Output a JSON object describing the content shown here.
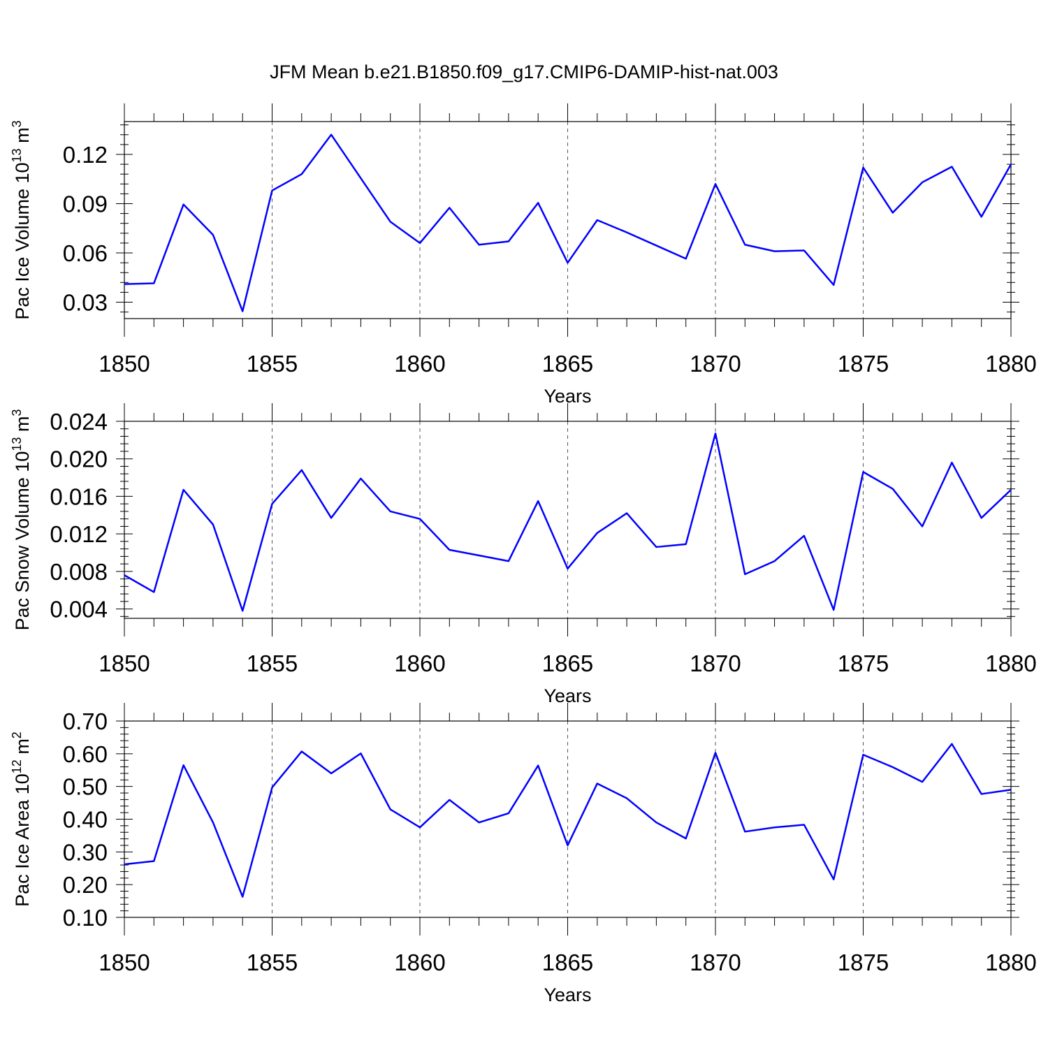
{
  "title": "JFM Mean b.e21.B1850.f09_g17.CMIP6-DAMIP-hist-nat.003",
  "colors": {
    "series": "#0000ff",
    "axis": "#000000",
    "grid": "#555555"
  },
  "chart_data": [
    {
      "type": "line",
      "ylabel": {
        "base": "Pac Ice Volume 10",
        "exp": "13",
        "unit": " m",
        "unit_exp": "3"
      },
      "xlabel": "Years",
      "xlim": [
        1850,
        1880
      ],
      "ylim": [
        0.02,
        0.14
      ],
      "xticks": [
        "1850",
        "1855",
        "1860",
        "1865",
        "1870",
        "1875",
        "1880"
      ],
      "yticks": [
        "0.03",
        "0.06",
        "0.09",
        "0.12"
      ],
      "grid": "vertical dashed at major x ticks",
      "x": [
        1850,
        1851,
        1852,
        1853,
        1854,
        1855,
        1856,
        1857,
        1858,
        1859,
        1860,
        1861,
        1862,
        1863,
        1864,
        1865,
        1866,
        1867,
        1868,
        1869,
        1870,
        1871,
        1872,
        1873,
        1874,
        1875,
        1876,
        1877,
        1878,
        1879,
        1880
      ],
      "series": [
        {
          "values": [
            0.041,
            0.0415,
            0.0895,
            0.071,
            0.0245,
            0.098,
            0.108,
            0.132,
            0.1055,
            0.079,
            0.066,
            0.0875,
            0.065,
            0.067,
            0.0905,
            0.054,
            0.08,
            0.0725,
            0.0645,
            0.0565,
            0.102,
            0.065,
            0.061,
            0.0615,
            0.0405,
            0.112,
            0.0845,
            0.103,
            0.1125,
            0.082,
            0.114
          ]
        }
      ]
    },
    {
      "type": "line",
      "ylabel": {
        "base": "Pac Snow Volume 10",
        "exp": "13",
        "unit": " m",
        "unit_exp": "3"
      },
      "xlabel": "Years",
      "xlim": [
        1850,
        1880
      ],
      "ylim": [
        0.003,
        0.024
      ],
      "xticks": [
        "1850",
        "1855",
        "1860",
        "1865",
        "1870",
        "1875",
        "1880"
      ],
      "yticks": [
        "0.004",
        "0.008",
        "0.012",
        "0.016",
        "0.020",
        "0.024"
      ],
      "grid": "vertical dashed at major x ticks",
      "x": [
        1850,
        1851,
        1852,
        1853,
        1854,
        1855,
        1856,
        1857,
        1858,
        1859,
        1860,
        1861,
        1862,
        1863,
        1864,
        1865,
        1866,
        1867,
        1868,
        1869,
        1870,
        1871,
        1872,
        1873,
        1874,
        1875,
        1876,
        1877,
        1878,
        1879,
        1880
      ],
      "series": [
        {
          "values": [
            0.0076,
            0.0058,
            0.0167,
            0.013,
            0.0038,
            0.0152,
            0.0188,
            0.0137,
            0.0179,
            0.0144,
            0.0136,
            0.0103,
            0.0097,
            0.0091,
            0.0155,
            0.0083,
            0.0121,
            0.0142,
            0.0106,
            0.0109,
            0.0227,
            0.0077,
            0.0091,
            0.0118,
            0.0039,
            0.0186,
            0.0168,
            0.0128,
            0.0196,
            0.0137,
            0.0167
          ]
        }
      ]
    },
    {
      "type": "line",
      "ylabel": {
        "base": "Pac Ice Area 10",
        "exp": "12",
        "unit": " m",
        "unit_exp": "2"
      },
      "xlabel": "Years",
      "xlim": [
        1850,
        1880
      ],
      "ylim": [
        0.1,
        0.7
      ],
      "xticks": [
        "1850",
        "1855",
        "1860",
        "1865",
        "1870",
        "1875",
        "1880"
      ],
      "yticks": [
        "0.10",
        "0.20",
        "0.30",
        "0.40",
        "0.50",
        "0.60",
        "0.70"
      ],
      "grid": "vertical dashed at major x ticks",
      "x": [
        1850,
        1851,
        1852,
        1853,
        1854,
        1855,
        1856,
        1857,
        1858,
        1859,
        1860,
        1861,
        1862,
        1863,
        1864,
        1865,
        1866,
        1867,
        1868,
        1869,
        1870,
        1871,
        1872,
        1873,
        1874,
        1875,
        1876,
        1877,
        1878,
        1879,
        1880
      ],
      "series": [
        {
          "values": [
            0.262,
            0.272,
            0.565,
            0.39,
            0.163,
            0.497,
            0.607,
            0.54,
            0.601,
            0.43,
            0.375,
            0.459,
            0.39,
            0.418,
            0.564,
            0.32,
            0.509,
            0.464,
            0.39,
            0.341,
            0.603,
            0.362,
            0.375,
            0.383,
            0.216,
            0.597,
            0.559,
            0.514,
            0.63,
            0.477,
            0.49
          ]
        }
      ]
    }
  ]
}
